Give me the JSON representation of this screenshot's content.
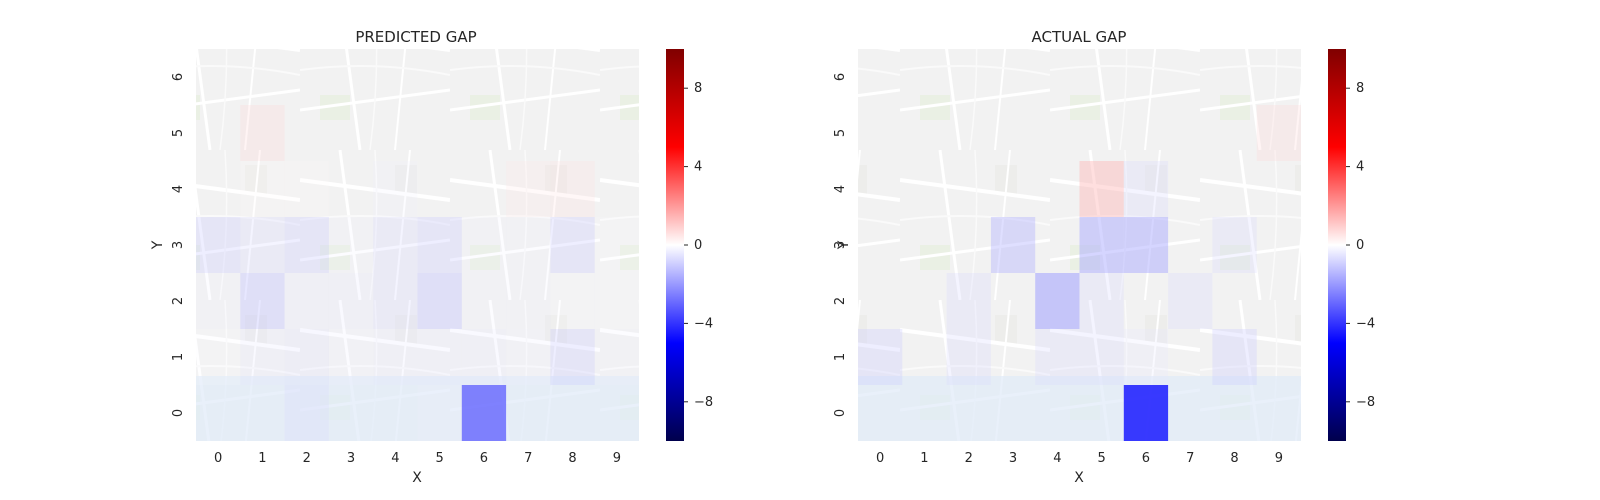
{
  "chart_data": [
    {
      "type": "heatmap",
      "title": "PREDICTED GAP",
      "xlabel": "X",
      "ylabel": "Y",
      "x": [
        0,
        1,
        2,
        3,
        4,
        5,
        6,
        7,
        8,
        9
      ],
      "y": [
        0,
        1,
        2,
        3,
        4,
        5,
        6
      ],
      "clim": [
        -10,
        10
      ],
      "colorbar_ticks": [
        -8,
        -4,
        0,
        4,
        8
      ],
      "colormap": "seismic",
      "background": "map",
      "values": [
        [
          0.0,
          0.0,
          -1.5,
          0.0,
          0.0,
          -0.5,
          -6.5,
          0.0,
          0.0,
          0.0
        ],
        [
          -0.2,
          -1.0,
          -1.2,
          -0.8,
          -1.0,
          -1.0,
          -1.0,
          -0.8,
          -2.0,
          -0.5
        ],
        [
          -0.5,
          -2.5,
          -1.0,
          -1.0,
          -1.5,
          -2.5,
          -0.5,
          -0.5,
          -0.3,
          -0.3
        ],
        [
          -2.0,
          -1.5,
          -2.0,
          -0.5,
          -1.5,
          -2.0,
          -0.5,
          -0.5,
          -2.0,
          -0.2
        ],
        [
          0.0,
          0.2,
          0.3,
          0.0,
          -0.5,
          0.0,
          0.0,
          1.0,
          1.2,
          0.0
        ],
        [
          0.0,
          1.5,
          0.0,
          0.0,
          0.0,
          0.0,
          0.0,
          0.0,
          0.0,
          0.0
        ],
        [
          0.0,
          0.0,
          0.0,
          0.0,
          0.0,
          0.0,
          0.0,
          0.0,
          0.0,
          0.0
        ]
      ]
    },
    {
      "type": "heatmap",
      "title": "ACTUAL GAP",
      "xlabel": "X",
      "ylabel": "Y",
      "x": [
        0,
        1,
        2,
        3,
        4,
        5,
        6,
        7,
        8,
        9
      ],
      "y": [
        0,
        1,
        2,
        3,
        4,
        5,
        6
      ],
      "clim": [
        -10,
        10
      ],
      "colorbar_ticks": [
        -8,
        -4,
        0,
        4,
        8
      ],
      "colormap": "seismic",
      "background": "map",
      "values": [
        [
          0.0,
          0.0,
          0.0,
          0.0,
          0.0,
          0.0,
          -9.0,
          0.0,
          0.0,
          0.0
        ],
        [
          -2.0,
          0.0,
          -1.5,
          0.0,
          -1.5,
          -1.5,
          -1.0,
          0.0,
          -2.0,
          0.0
        ],
        [
          0.0,
          0.0,
          -1.5,
          0.0,
          -4.0,
          -1.5,
          0.0,
          -1.5,
          0.0,
          0.0
        ],
        [
          0.0,
          0.0,
          0.0,
          -3.0,
          0.0,
          -3.5,
          -3.5,
          0.0,
          -1.5,
          0.0
        ],
        [
          0.0,
          0.0,
          0.0,
          0.0,
          0.0,
          3.0,
          -1.5,
          0.0,
          0.0,
          0.0
        ],
        [
          0.0,
          0.0,
          0.0,
          0.0,
          0.0,
          0.0,
          0.0,
          0.0,
          0.0,
          1.5
        ],
        [
          0.0,
          0.0,
          0.0,
          0.0,
          0.0,
          0.0,
          0.0,
          0.0,
          0.0,
          0.0
        ]
      ]
    }
  ]
}
